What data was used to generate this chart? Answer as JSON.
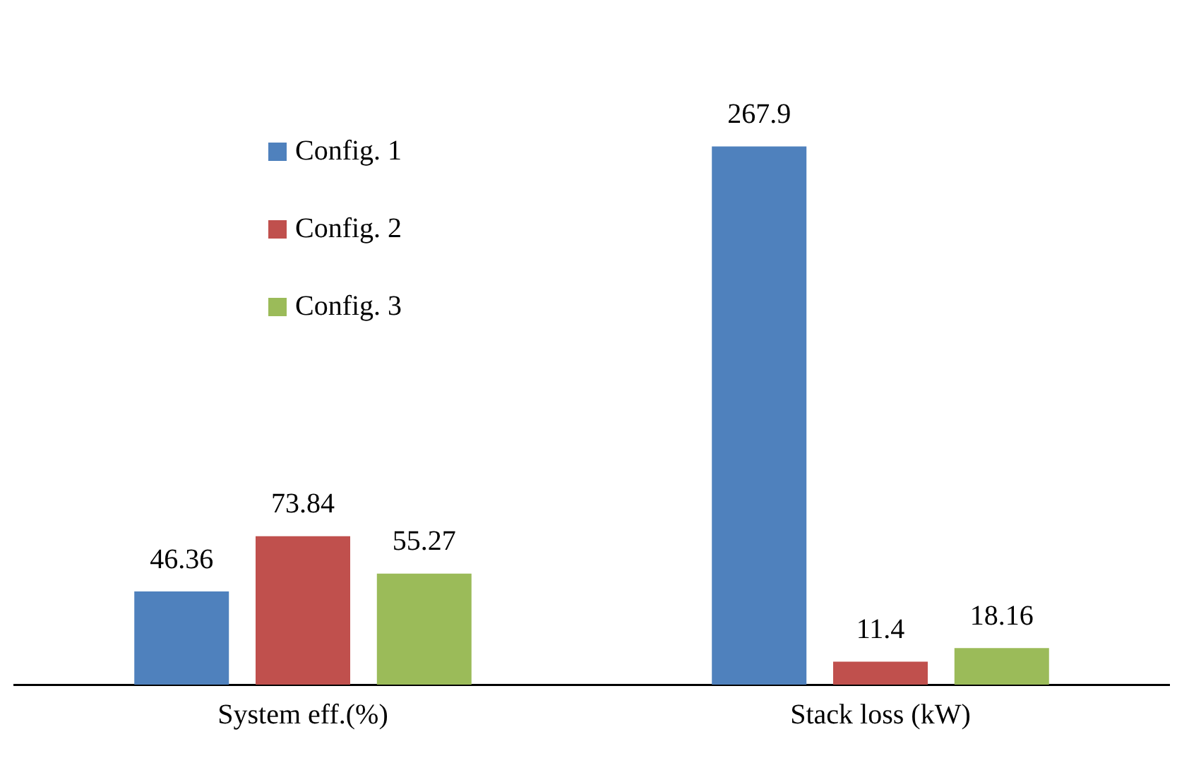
{
  "chart_data": {
    "type": "bar",
    "categories": [
      "System eff.(%)",
      "Stack loss (kW)"
    ],
    "series": [
      {
        "name": "Config. 1",
        "color": "#4f81bd",
        "values": [
          46.36,
          267.9
        ]
      },
      {
        "name": "Config. 2",
        "color": "#c0504d",
        "values": [
          73.84,
          11.4
        ]
      },
      {
        "name": "Config. 3",
        "color": "#9bbb59",
        "values": [
          55.27,
          18.16
        ]
      }
    ],
    "data_labels": true,
    "legend": "top left",
    "grid": false
  }
}
